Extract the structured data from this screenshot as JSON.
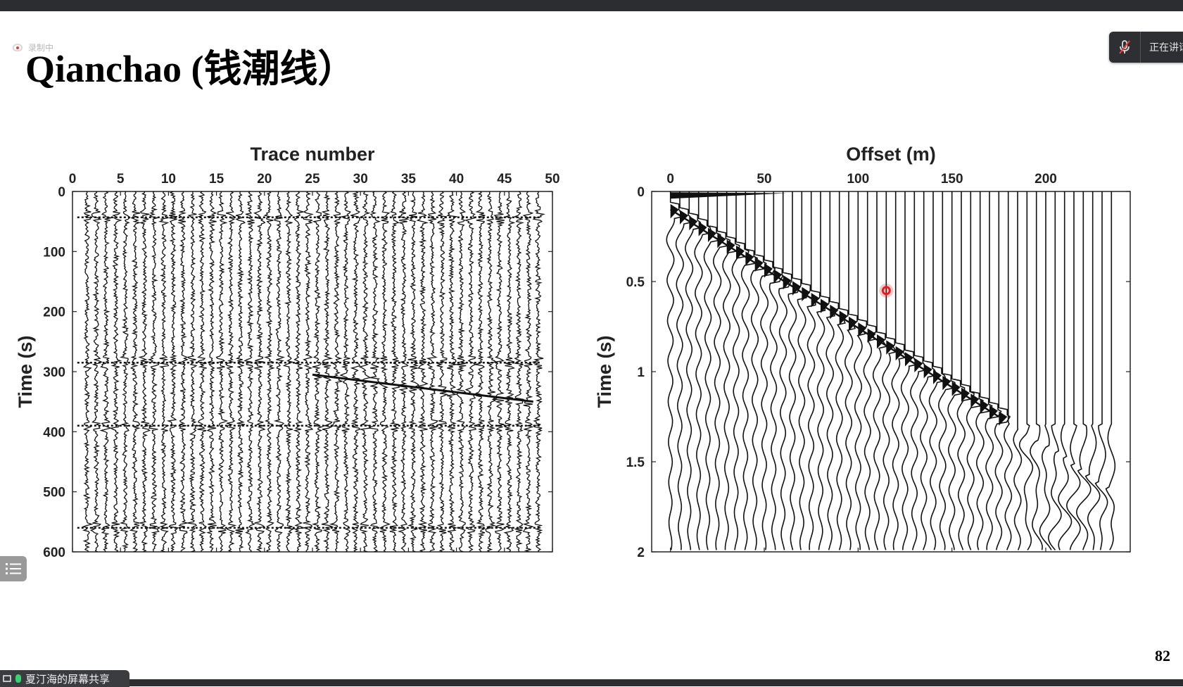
{
  "slide": {
    "title": "Qianchao (钱潮线）",
    "page_number": "82"
  },
  "meeting": {
    "recording_label": "录制中",
    "speaker_label": "正在讲话",
    "share_label": "夏汀海的屏幕共享",
    "icons": [
      "recording-cloud-icon",
      "mic-muted-icon",
      "list-icon",
      "share-screen-icon"
    ]
  },
  "chart_data": [
    {
      "type": "line",
      "title": "",
      "xlabel": "Trace number",
      "ylabel": "Time (s)",
      "x_ticks": [
        0,
        5,
        10,
        15,
        20,
        25,
        30,
        35,
        40,
        45,
        50
      ],
      "y_ticks": [
        0,
        100,
        200,
        300,
        400,
        500,
        600
      ],
      "xlim": [
        0,
        50
      ],
      "ylim": [
        600,
        0
      ],
      "x_axis_position": "top",
      "y_reversed": true,
      "grid": false,
      "n_traces": 48,
      "trace_spacing": 1,
      "strong_event_times": [
        43,
        285,
        390,
        560
      ],
      "dipping_event": {
        "from": [
          25,
          305
        ],
        "to": [
          48,
          350
        ]
      }
    },
    {
      "type": "line",
      "title": "",
      "xlabel": "Offset (m)",
      "ylabel": "Time (s)",
      "x_ticks": [
        0,
        50,
        100,
        150,
        200
      ],
      "y_ticks": [
        0,
        0.5,
        1,
        1.5,
        2
      ],
      "xlim": [
        -10,
        245
      ],
      "ylim": [
        2,
        0
      ],
      "x_axis_position": "top",
      "y_reversed": true,
      "grid": false,
      "trace_spacing": 5,
      "first_trace_offset": 0,
      "last_trace_offset": 235,
      "first_arrival": {
        "from": [
          0,
          0.1
        ],
        "to": [
          175,
          1.25
        ]
      },
      "highlight_marker": {
        "offset": 115,
        "time": 0.55,
        "color": "#e02020"
      }
    }
  ]
}
